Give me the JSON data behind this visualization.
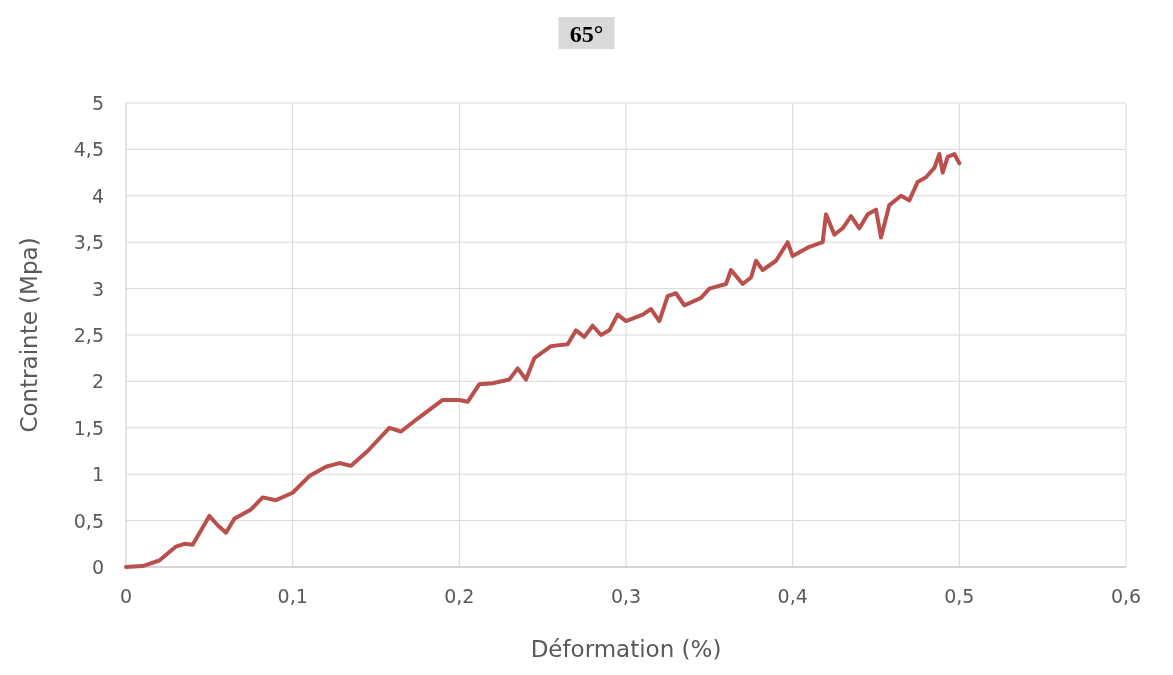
{
  "chart_data": {
    "type": "line",
    "title": "65°",
    "xlabel": "Déformation (%)",
    "ylabel": "Contrainte (Mpa)",
    "xlim": [
      0,
      0.6
    ],
    "ylim": [
      0,
      5
    ],
    "xticks": [
      0,
      {
        "value": 0.1,
        "label": "0,1"
      },
      {
        "value": 0.2,
        "label": "0,2"
      },
      {
        "value": 0.3,
        "label": "0,3"
      },
      {
        "value": 0.4,
        "label": "0,4"
      },
      {
        "value": 0.5,
        "label": "0,5"
      },
      {
        "value": 0.6,
        "label": "0,6"
      }
    ],
    "yticks": [
      0,
      {
        "value": 0.5,
        "label": "0,5"
      },
      1,
      {
        "value": 1.5,
        "label": "1,5"
      },
      2,
      {
        "value": 2.5,
        "label": "2,5"
      },
      3,
      {
        "value": 3.5,
        "label": "3,5"
      },
      4,
      {
        "value": 4.5,
        "label": "4,5"
      },
      5
    ],
    "grid": true,
    "marker": "none",
    "line_style": "solid",
    "series": [
      {
        "color": "#b9504c",
        "x": [
          0,
          0.01,
          0.02,
          0.03,
          0.035,
          0.04,
          0.05,
          0.055,
          0.06,
          0.065,
          0.075,
          0.082,
          0.09,
          0.1,
          0.11,
          0.12,
          0.128,
          0.135,
          0.145,
          0.158,
          0.165,
          0.175,
          0.19,
          0.2,
          0.205,
          0.212,
          0.22,
          0.23,
          0.235,
          0.24,
          0.245,
          0.255,
          0.265,
          0.27,
          0.275,
          0.28,
          0.285,
          0.29,
          0.295,
          0.3,
          0.31,
          0.315,
          0.32,
          0.325,
          0.33,
          0.335,
          0.345,
          0.35,
          0.36,
          0.363,
          0.37,
          0.375,
          0.378,
          0.382,
          0.39,
          0.397,
          0.4,
          0.41,
          0.418,
          0.42,
          0.425,
          0.43,
          0.435,
          0.44,
          0.445,
          0.45,
          0.453,
          0.458,
          0.465,
          0.47,
          0.475,
          0.48,
          0.485,
          0.488,
          0.49,
          0.493,
          0.497,
          0.5
        ],
        "values": [
          0,
          0.01,
          0.07,
          0.22,
          0.25,
          0.24,
          0.55,
          0.45,
          0.37,
          0.52,
          0.62,
          0.75,
          0.72,
          0.8,
          0.98,
          1.08,
          1.12,
          1.09,
          1.25,
          1.5,
          1.46,
          1.6,
          1.8,
          1.8,
          1.78,
          1.97,
          1.98,
          2.02,
          2.14,
          2.02,
          2.25,
          2.38,
          2.4,
          2.55,
          2.48,
          2.6,
          2.5,
          2.55,
          2.72,
          2.65,
          2.72,
          2.78,
          2.65,
          2.92,
          2.95,
          2.82,
          2.9,
          3,
          3.05,
          3.2,
          3.05,
          3.12,
          3.3,
          3.2,
          3.3,
          3.5,
          3.35,
          3.45,
          3.5,
          3.8,
          3.58,
          3.65,
          3.78,
          3.65,
          3.8,
          3.85,
          3.55,
          3.9,
          4,
          3.95,
          4.15,
          4.2,
          4.3,
          4.45,
          4.25,
          4.42,
          4.45,
          4.35
        ]
      }
    ]
  }
}
